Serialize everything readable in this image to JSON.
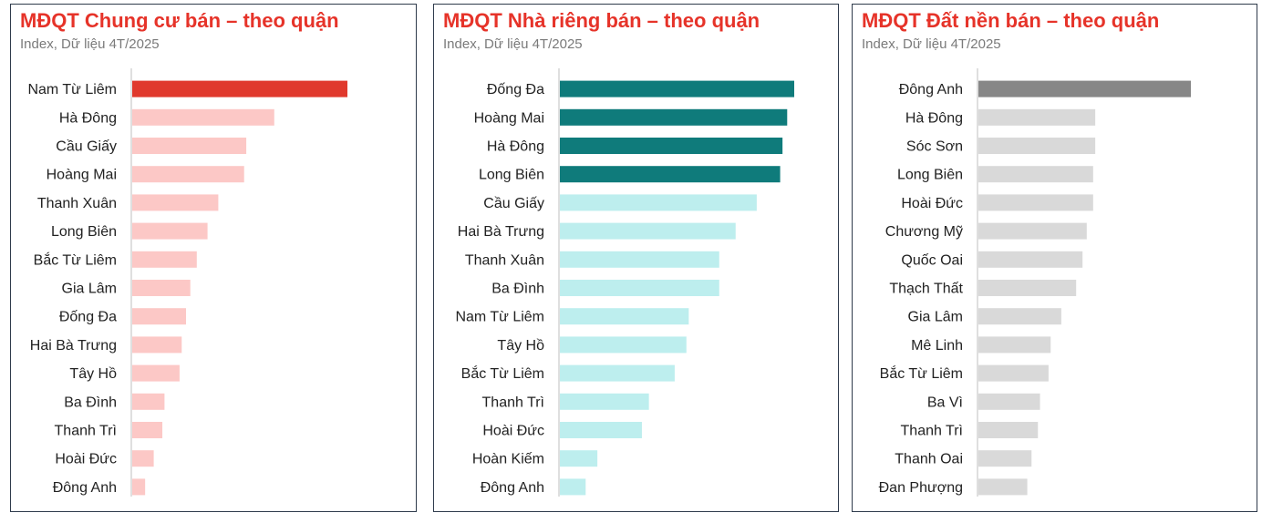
{
  "charts": [
    {
      "title": "MĐQT Chung cư bán – theo quận",
      "subtitle": "Index, Dữ liệu 4T/2025",
      "highlight_color": "#e0392d",
      "base_color": "#fcc8c6",
      "highlight_count": 1,
      "chart_data": {
        "type": "bar",
        "orientation": "horizontal",
        "categories": [
          "Nam Từ Liêm",
          "Hà Đông",
          "Cầu Giấy",
          "Hoàng Mai",
          "Thanh Xuân",
          "Long Biên",
          "Bắc Từ Liêm",
          "Gia Lâm",
          "Đống Đa",
          "Hai Bà Trưng",
          "Tây Hồ",
          "Ba Đình",
          "Thanh Trì",
          "Hoài Đức",
          "Đông Anh"
        ],
        "values": [
          100,
          66,
          53,
          52,
          40,
          35,
          30,
          27,
          25,
          23,
          22,
          15,
          14,
          10,
          6
        ],
        "xlim": [
          0,
          100
        ]
      }
    },
    {
      "title": "MĐQT Nhà riêng bán – theo quận",
      "subtitle": "Index, Dữ liệu 4T/2025",
      "highlight_color": "#0f7b7b",
      "base_color": "#bdeeee",
      "highlight_count": 4,
      "chart_data": {
        "type": "bar",
        "orientation": "horizontal",
        "categories": [
          "Đống Đa",
          "Hoàng Mai",
          "Hà Đông",
          "Long Biên",
          "Cầu Giấy",
          "Hai Bà Trưng",
          "Thanh Xuân",
          "Ba Đình",
          "Nam Từ Liêm",
          "Tây Hồ",
          "Bắc Từ Liêm",
          "Thanh Trì",
          "Hoài Đức",
          "Hoàn Kiếm",
          "Đông Anh"
        ],
        "values": [
          100,
          97,
          95,
          94,
          84,
          75,
          68,
          68,
          55,
          54,
          49,
          38,
          35,
          16,
          11
        ],
        "xlim": [
          0,
          100
        ]
      }
    },
    {
      "title": "MĐQT Đất nền bán – theo quận",
      "subtitle": "Index, Dữ liệu 4T/2025",
      "highlight_color": "#878787",
      "base_color": "#d9d9d9",
      "highlight_count": 1,
      "chart_data": {
        "type": "bar",
        "orientation": "horizontal",
        "categories": [
          "Đông Anh",
          "Hà Đông",
          "Sóc Sơn",
          "Long Biên",
          "Hoài Đức",
          "Chương Mỹ",
          "Quốc Oai",
          "Thạch Thất",
          "Gia Lâm",
          "Mê Linh",
          "Bắc Từ Liêm",
          "Ba Vì",
          "Thanh Trì",
          "Thanh Oai",
          "Đan Phượng"
        ],
        "values": [
          100,
          55,
          55,
          54,
          54,
          51,
          49,
          46,
          39,
          34,
          33,
          29,
          28,
          25,
          23
        ],
        "xlim": [
          0,
          100
        ]
      }
    }
  ]
}
